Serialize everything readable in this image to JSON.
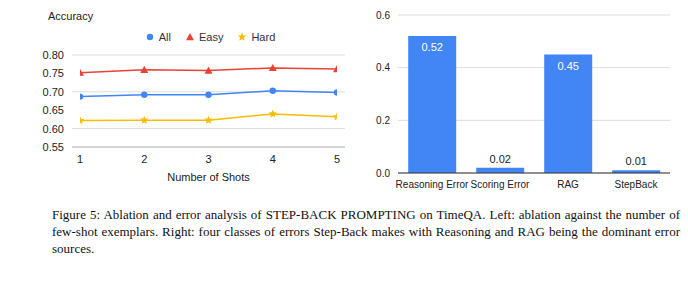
{
  "chart_data": [
    {
      "type": "line",
      "y_label": "Accuracy",
      "x_label": "Number of Shots",
      "x": [
        1,
        2,
        3,
        4,
        5
      ],
      "xlim": [
        1,
        5
      ],
      "xticks": [
        1,
        2,
        3,
        4,
        5
      ],
      "ylim": [
        0.55,
        0.8
      ],
      "yticks": [
        0.55,
        {
          "value": 0.6,
          "label": "0.60"
        },
        0.65,
        {
          "value": 0.7,
          "label": "0.70"
        },
        0.75,
        {
          "value": 0.8,
          "label": "0.80"
        }
      ],
      "grid": true,
      "legend": "top",
      "series": [
        {
          "name": "All",
          "color": "#4285f4",
          "marker": "circle",
          "values": [
            0.687,
            0.692,
            0.692,
            0.703,
            0.698
          ]
        },
        {
          "name": "Easy",
          "color": "#ea4335",
          "marker": "triangle",
          "values": [
            0.752,
            0.76,
            0.758,
            0.765,
            0.762
          ]
        },
        {
          "name": "Hard",
          "color": "#fbbc04",
          "marker": "star",
          "values": [
            0.622,
            0.623,
            0.623,
            0.64,
            0.632
          ]
        }
      ]
    },
    {
      "type": "bar",
      "categories": [
        "Reasoning Error",
        "Scoring Error",
        "RAG",
        "StepBack"
      ],
      "values": [
        0.52,
        0.02,
        0.45,
        0.01
      ],
      "color": "#4285f4",
      "ylim": [
        0,
        0.6
      ],
      "yticks": [
        {
          "value": 0,
          "label": "0.0"
        },
        0.2,
        0.4,
        0.6
      ],
      "grid": true,
      "data_labels": true
    }
  ],
  "caption": "Figure 5: Ablation and error analysis of STEP-BACK PROMPTING on TimeQA. Left: ablation against the number of few-shot exemplars. Right: four classes of errors Step-Back makes with Reasoning and RAG being the dominant error sources."
}
